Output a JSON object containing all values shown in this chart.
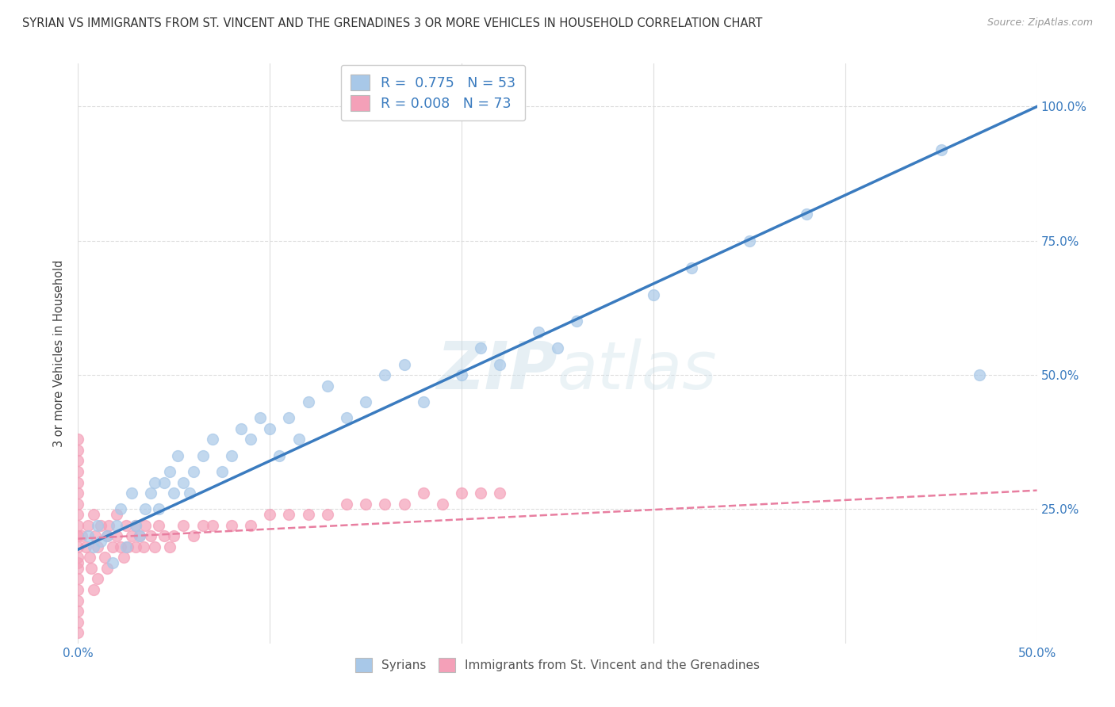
{
  "title": "SYRIAN VS IMMIGRANTS FROM ST. VINCENT AND THE GRENADINES 3 OR MORE VEHICLES IN HOUSEHOLD CORRELATION CHART",
  "source": "Source: ZipAtlas.com",
  "ylabel": "3 or more Vehicles in Household",
  "xlim": [
    0,
    0.5
  ],
  "ylim": [
    0,
    1.08
  ],
  "ytick_vals": [
    0,
    0.25,
    0.5,
    0.75,
    1.0
  ],
  "xtick_vals": [
    0,
    0.1,
    0.2,
    0.3,
    0.4,
    0.5
  ],
  "color_syrians": "#a8c8e8",
  "color_stv": "#f4a0b8",
  "trendline_syrian_color": "#3a7bbf",
  "trendline_stv_color": "#e87ea0",
  "watermark": "ZIPatlas",
  "background_color": "#ffffff",
  "grid_color": "#dddddd",
  "syrians_x": [
    0.005,
    0.008,
    0.01,
    0.012,
    0.015,
    0.018,
    0.02,
    0.022,
    0.025,
    0.028,
    0.03,
    0.032,
    0.035,
    0.038,
    0.04,
    0.042,
    0.045,
    0.048,
    0.05,
    0.052,
    0.055,
    0.058,
    0.06,
    0.065,
    0.07,
    0.075,
    0.08,
    0.085,
    0.09,
    0.095,
    0.1,
    0.105,
    0.11,
    0.115,
    0.12,
    0.13,
    0.14,
    0.15,
    0.16,
    0.17,
    0.18,
    0.2,
    0.21,
    0.22,
    0.24,
    0.25,
    0.26,
    0.3,
    0.32,
    0.35,
    0.38,
    0.45,
    0.47
  ],
  "syrians_y": [
    0.2,
    0.18,
    0.22,
    0.19,
    0.2,
    0.15,
    0.22,
    0.25,
    0.18,
    0.28,
    0.22,
    0.2,
    0.25,
    0.28,
    0.3,
    0.25,
    0.3,
    0.32,
    0.28,
    0.35,
    0.3,
    0.28,
    0.32,
    0.35,
    0.38,
    0.32,
    0.35,
    0.4,
    0.38,
    0.42,
    0.4,
    0.35,
    0.42,
    0.38,
    0.45,
    0.48,
    0.42,
    0.45,
    0.5,
    0.52,
    0.45,
    0.5,
    0.55,
    0.52,
    0.58,
    0.55,
    0.6,
    0.65,
    0.7,
    0.75,
    0.8,
    0.92,
    0.5
  ],
  "stv_x": [
    0.0,
    0.0,
    0.0,
    0.0,
    0.0,
    0.0,
    0.0,
    0.0,
    0.0,
    0.0,
    0.0,
    0.0,
    0.0,
    0.0,
    0.0,
    0.0,
    0.0,
    0.0,
    0.0,
    0.0,
    0.002,
    0.004,
    0.005,
    0.006,
    0.007,
    0.008,
    0.008,
    0.009,
    0.01,
    0.01,
    0.012,
    0.014,
    0.015,
    0.015,
    0.016,
    0.018,
    0.02,
    0.02,
    0.022,
    0.024,
    0.025,
    0.026,
    0.028,
    0.03,
    0.03,
    0.032,
    0.034,
    0.035,
    0.038,
    0.04,
    0.042,
    0.045,
    0.048,
    0.05,
    0.055,
    0.06,
    0.065,
    0.07,
    0.08,
    0.09,
    0.1,
    0.11,
    0.12,
    0.13,
    0.14,
    0.15,
    0.16,
    0.17,
    0.18,
    0.19,
    0.2,
    0.21,
    0.22
  ],
  "stv_y": [
    0.2,
    0.18,
    0.22,
    0.24,
    0.16,
    0.14,
    0.12,
    0.26,
    0.28,
    0.1,
    0.08,
    0.06,
    0.3,
    0.32,
    0.04,
    0.02,
    0.34,
    0.36,
    0.38,
    0.15,
    0.2,
    0.18,
    0.22,
    0.16,
    0.14,
    0.24,
    0.1,
    0.2,
    0.18,
    0.12,
    0.22,
    0.16,
    0.2,
    0.14,
    0.22,
    0.18,
    0.2,
    0.24,
    0.18,
    0.16,
    0.22,
    0.18,
    0.2,
    0.18,
    0.22,
    0.2,
    0.18,
    0.22,
    0.2,
    0.18,
    0.22,
    0.2,
    0.18,
    0.2,
    0.22,
    0.2,
    0.22,
    0.22,
    0.22,
    0.22,
    0.24,
    0.24,
    0.24,
    0.24,
    0.26,
    0.26,
    0.26,
    0.26,
    0.28,
    0.26,
    0.28,
    0.28,
    0.28
  ],
  "trendline_s_x0": 0.0,
  "trendline_s_y0": 0.175,
  "trendline_s_x1": 0.5,
  "trendline_s_y1": 1.0,
  "trendline_p_x0": 0.0,
  "trendline_p_y0": 0.195,
  "trendline_p_x1": 0.5,
  "trendline_p_y1": 0.285
}
